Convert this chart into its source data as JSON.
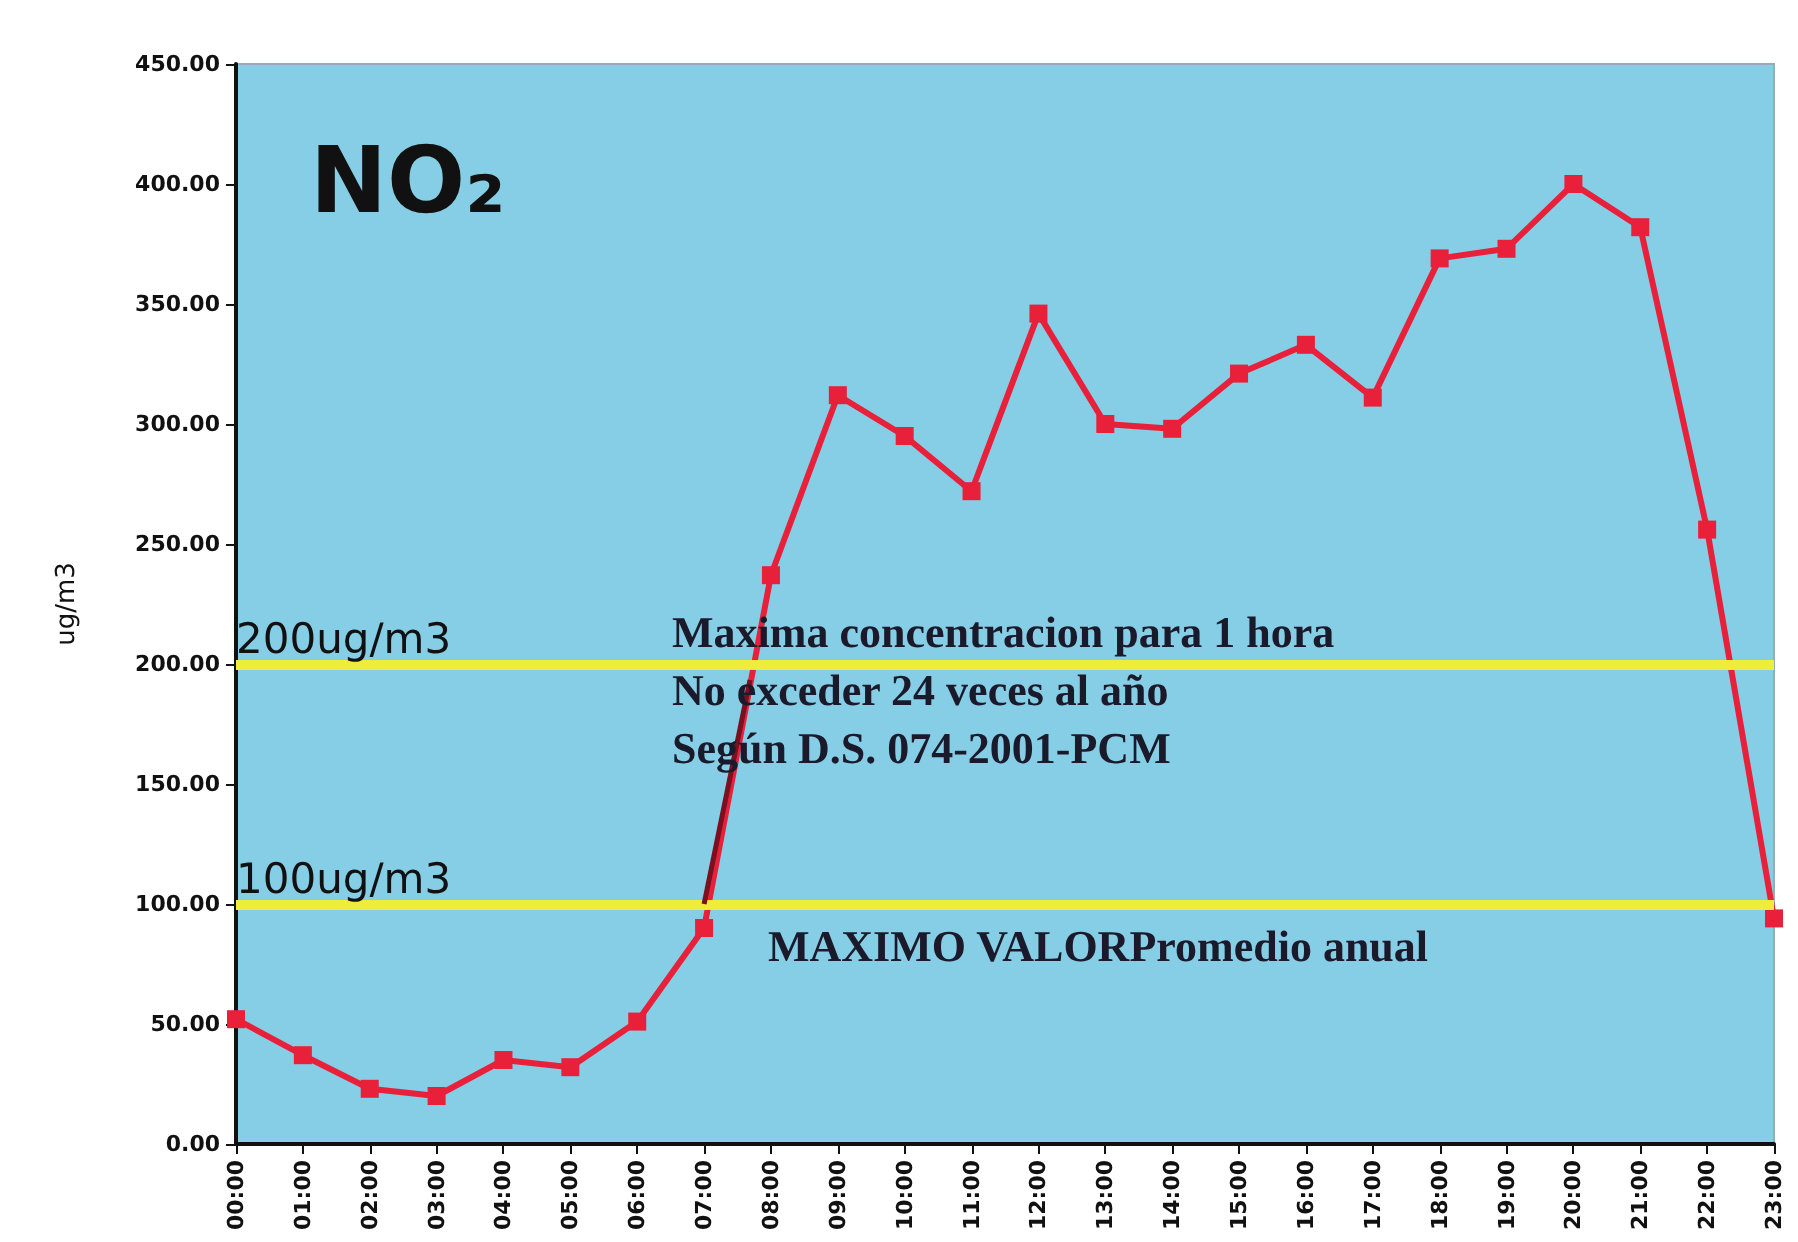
{
  "chart_data": {
    "type": "line",
    "title": "NO₂",
    "ylabel": "ug/m3",
    "categories": [
      "00:00",
      "01:00",
      "02:00",
      "03:00",
      "04:00",
      "05:00",
      "06:00",
      "07:00",
      "08:00",
      "09:00",
      "10:00",
      "11:00",
      "12:00",
      "13:00",
      "14:00",
      "15:00",
      "16:00",
      "17:00",
      "18:00",
      "19:00",
      "20:00",
      "21:00",
      "22:00",
      "23:00"
    ],
    "series": [
      {
        "color": "#e8203a",
        "values": [
          52,
          37,
          23,
          20,
          35,
          32,
          51,
          90,
          237,
          312,
          295,
          272,
          346,
          300,
          298,
          321,
          333,
          311,
          369,
          373,
          400,
          382,
          256,
          94
        ]
      }
    ],
    "ylim": [
      0,
      450
    ],
    "yticks": [
      {
        "value": 0,
        "label": "0.00"
      },
      {
        "value": 50,
        "label": "50.00"
      },
      {
        "value": 100,
        "label": "100.00"
      },
      {
        "value": 150,
        "label": "150.00"
      },
      {
        "value": 200,
        "label": "200.00"
      },
      {
        "value": 250,
        "label": "250.00"
      },
      {
        "value": 300,
        "label": "300.00"
      },
      {
        "value": 350,
        "label": "350.00"
      },
      {
        "value": 400,
        "label": "400.00"
      },
      {
        "value": 450,
        "label": "450.00"
      }
    ],
    "ref_lines": [
      {
        "axis": "y",
        "value": 200,
        "label": "200ug/m3",
        "color": "#f0ec3c"
      },
      {
        "axis": "y",
        "value": 100,
        "label": "100ug/m3",
        "color": "#f0ec3c"
      }
    ],
    "annotations": [
      "Maxima concentracion para 1 hora",
      {
        "text": "No exceder 24 veces al año",
        "x": "07:00",
        "y": 100
      },
      "Según D.S. 074-2001-PCM",
      "MAXIMO VALORPromedio anual"
    ],
    "marker": "square",
    "line_style": "solid",
    "grid": false
  }
}
